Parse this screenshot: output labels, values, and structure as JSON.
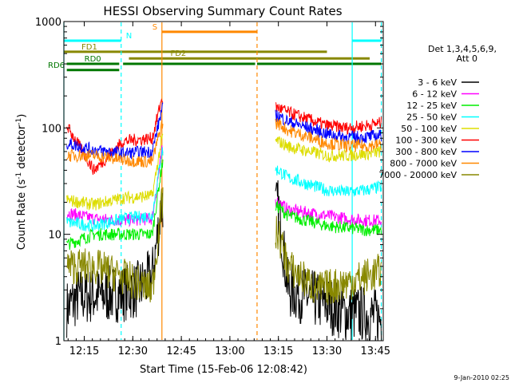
{
  "chart_data": {
    "type": "line",
    "title": "HESSI Observing Summary Count Rates",
    "xlabel": "Start Time (15-Feb-06 12:08:42)",
    "ylabel": "Count Rate (s",
    "ylabel_sup1": "-1",
    "ylabel_mid": " detector",
    "ylabel_sup2": "-1",
    "ylabel_end": ")",
    "y_scale": "log",
    "ylim": [
      1,
      1000
    ],
    "xlim": [
      12.145,
      13.79
    ],
    "x_ticks": [
      {
        "t": 12.25,
        "label": "12:15"
      },
      {
        "t": 12.5,
        "label": "12:30"
      },
      {
        "t": 12.75,
        "label": "12:45"
      },
      {
        "t": 13.0,
        "label": "13:00"
      },
      {
        "t": 13.25,
        "label": "13:15"
      },
      {
        "t": 13.5,
        "label": "13:30"
      },
      {
        "t": 13.75,
        "label": "13:45"
      }
    ],
    "y_ticks": [
      {
        "v": 1,
        "label": "1"
      },
      {
        "v": 10,
        "label": "10"
      },
      {
        "v": 100,
        "label": "100"
      },
      {
        "v": 1000,
        "label": "1000"
      }
    ],
    "legend_header": [
      "Det 1,3,4,5,6,9,",
      "Att 0"
    ],
    "legend_placement": "right",
    "series": [
      {
        "name": "3 - 6 keV",
        "color": "#000000",
        "values": [
          [
            12.16,
            2
          ],
          [
            12.22,
            2.6
          ],
          [
            12.35,
            2.7
          ],
          [
            12.45,
            2.8
          ],
          [
            12.52,
            3
          ],
          [
            12.6,
            4
          ],
          [
            12.65,
            20
          ],
          [
            13.25,
            18
          ],
          [
            13.3,
            3
          ],
          [
            13.5,
            2.2
          ],
          [
            13.6,
            1.8
          ],
          [
            13.7,
            1.8
          ],
          [
            13.78,
            1.6
          ]
        ]
      },
      {
        "name": "6 - 12 keV",
        "color": "#ff00ff",
        "values": [
          [
            12.16,
            16
          ],
          [
            12.3,
            14
          ],
          [
            12.45,
            13.5
          ],
          [
            12.6,
            14
          ],
          [
            12.65,
            60
          ],
          [
            13.25,
            20
          ],
          [
            13.3,
            17
          ],
          [
            13.5,
            15
          ],
          [
            13.6,
            14
          ],
          [
            13.7,
            13.5
          ],
          [
            13.78,
            13.5
          ]
        ]
      },
      {
        "name": "12 - 25 keV",
        "color": "#00ee00",
        "values": [
          [
            12.16,
            8
          ],
          [
            12.3,
            10
          ],
          [
            12.45,
            10
          ],
          [
            12.6,
            10
          ],
          [
            12.65,
            45
          ],
          [
            13.25,
            18
          ],
          [
            13.3,
            15
          ],
          [
            13.5,
            12
          ],
          [
            13.6,
            11.5
          ],
          [
            13.7,
            11
          ],
          [
            13.78,
            11
          ]
        ]
      },
      {
        "name": "25 - 50 keV",
        "color": "#00ffff",
        "values": [
          [
            12.16,
            13
          ],
          [
            12.3,
            12
          ],
          [
            12.45,
            14
          ],
          [
            12.6,
            15
          ],
          [
            12.65,
            60
          ],
          [
            13.25,
            40
          ],
          [
            13.3,
            34
          ],
          [
            13.5,
            26
          ],
          [
            13.6,
            25
          ],
          [
            13.7,
            26
          ],
          [
            13.78,
            28
          ]
        ]
      },
      {
        "name": "50 - 100 keV",
        "color": "#dddd00",
        "values": [
          [
            12.16,
            21
          ],
          [
            12.3,
            19
          ],
          [
            12.45,
            22
          ],
          [
            12.6,
            23
          ],
          [
            12.65,
            80
          ],
          [
            13.25,
            75
          ],
          [
            13.3,
            67
          ],
          [
            13.5,
            55
          ],
          [
            13.6,
            55
          ],
          [
            13.7,
            57
          ],
          [
            13.78,
            60
          ]
        ]
      },
      {
        "name": "100 - 300 keV",
        "color": "#ff0000",
        "values": [
          [
            12.16,
            105
          ],
          [
            12.3,
            40
          ],
          [
            12.45,
            75
          ],
          [
            12.6,
            80
          ],
          [
            12.65,
            190
          ],
          [
            13.25,
            155
          ],
          [
            13.3,
            140
          ],
          [
            13.5,
            105
          ],
          [
            13.6,
            100
          ],
          [
            13.7,
            105
          ],
          [
            13.78,
            112
          ]
        ]
      },
      {
        "name": "300 - 800 keV",
        "color": "#0000ff",
        "values": [
          [
            12.16,
            72
          ],
          [
            12.3,
            62
          ],
          [
            12.45,
            58
          ],
          [
            12.6,
            60
          ],
          [
            12.65,
            150
          ],
          [
            13.25,
            130
          ],
          [
            13.3,
            115
          ],
          [
            13.5,
            88
          ],
          [
            13.6,
            82
          ],
          [
            13.7,
            82
          ],
          [
            13.78,
            85
          ]
        ]
      },
      {
        "name": "800 - 7000 keV",
        "color": "#ff8800",
        "values": [
          [
            12.16,
            55
          ],
          [
            12.3,
            55
          ],
          [
            12.45,
            50
          ],
          [
            12.6,
            48
          ],
          [
            12.65,
            110
          ],
          [
            13.25,
            110
          ],
          [
            13.3,
            95
          ],
          [
            13.5,
            72
          ],
          [
            13.6,
            68
          ],
          [
            13.7,
            68
          ],
          [
            13.78,
            70
          ]
        ]
      },
      {
        "name": "7000 - 20000 keV",
        "color": "#888800",
        "values": [
          [
            12.16,
            5
          ],
          [
            12.3,
            5
          ],
          [
            12.45,
            4
          ],
          [
            12.6,
            3
          ],
          [
            12.65,
            20
          ],
          [
            13.25,
            10
          ],
          [
            13.3,
            5
          ],
          [
            13.45,
            3
          ],
          [
            13.6,
            3.5
          ],
          [
            13.7,
            4
          ],
          [
            13.78,
            4.5
          ]
        ]
      }
    ],
    "flag_bars": [
      {
        "label": "N",
        "color": "#00ffff",
        "y": 660,
        "segments": [
          [
            12.145,
            12.44
          ],
          [
            13.63,
            13.78
          ]
        ]
      },
      {
        "label": "S",
        "color": "#ff8800",
        "y": 800,
        "segments": [
          [
            12.65,
            13.14
          ]
        ]
      },
      {
        "label": "FD1",
        "color": "#888800",
        "y": 520,
        "segments": [
          [
            12.145,
            13.5
          ]
        ]
      },
      {
        "label": "FD2",
        "color": "#888800",
        "y": 450,
        "segments": [
          [
            12.48,
            13.72
          ]
        ]
      },
      {
        "label": "RD0",
        "color": "#007700",
        "y": 400,
        "segments": [
          [
            12.16,
            12.43
          ],
          [
            12.45,
            13.13
          ],
          [
            13.14,
            13.78
          ]
        ]
      },
      {
        "label": "RD6",
        "color": "#007700",
        "y": 350,
        "segments": [
          [
            12.16,
            12.43
          ]
        ]
      }
    ],
    "vertical_lines": [
      {
        "t": 12.145,
        "color": "#00ffff",
        "style": "solid"
      },
      {
        "t": 12.44,
        "color": "#00ffff",
        "style": "dashed"
      },
      {
        "t": 12.65,
        "color": "#ff8800",
        "style": "solid"
      },
      {
        "t": 13.14,
        "color": "#ff8800",
        "style": "dashed"
      },
      {
        "t": 13.63,
        "color": "#00ffff",
        "style": "solid"
      },
      {
        "t": 13.78,
        "color": "#00ffff",
        "style": "dashed"
      }
    ],
    "footer_timestamp": "9-Jan-2010 02:25"
  }
}
